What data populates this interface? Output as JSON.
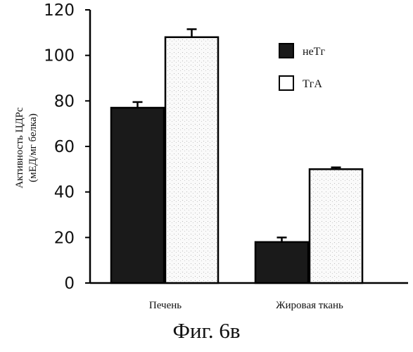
{
  "chart_data": {
    "type": "bar",
    "categories": [
      "Печень",
      "Жировая ткань"
    ],
    "series": [
      {
        "name": "неТг",
        "values": [
          77,
          18
        ],
        "errors": [
          2.5,
          2
        ],
        "color": "#1a1a1a"
      },
      {
        "name": "ТгА",
        "values": [
          108,
          50
        ],
        "errors": [
          3.5,
          0.8
        ],
        "color": "#ffffff"
      }
    ],
    "ylabel_lines": [
      "Активность ЦДРс",
      "(мЕД/мг белка)"
    ],
    "yticks": [
      0,
      20,
      40,
      60,
      80,
      100,
      120
    ],
    "ylim": [
      0,
      120
    ],
    "legend_position": "upper-right",
    "grid": false
  },
  "caption": "Фиг. 6в"
}
